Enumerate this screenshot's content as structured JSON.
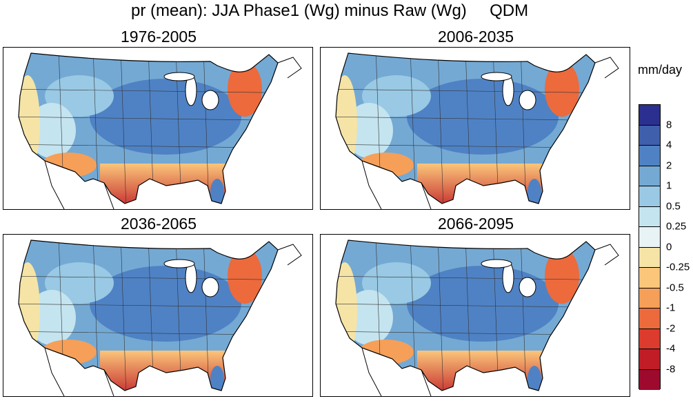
{
  "figure": {
    "title": "pr (mean): JJA Phase1 (Wg) minus Raw (Wg)     QDM",
    "units": "mm/day"
  },
  "panels": [
    {
      "label": "1976-2005"
    },
    {
      "label": "2006-2035"
    },
    {
      "label": "2036-2065"
    },
    {
      "label": "2066-2095"
    }
  ],
  "colorbar": {
    "colors": [
      "#2b2f8f",
      "#3f5fad",
      "#4f82c4",
      "#74a9d4",
      "#99c9e4",
      "#c4e4f0",
      "#e7f3f5",
      "#f5e4a6",
      "#fbc67a",
      "#f69f58",
      "#ec6a3c",
      "#dc3b2d",
      "#c01d27",
      "#9e0a2e"
    ],
    "labels": [
      "8",
      "4",
      "2",
      "1",
      "0.5",
      "0.25",
      "0",
      "-0.25",
      "-0.5",
      "-1",
      "-2",
      "-4",
      "-8"
    ]
  }
}
